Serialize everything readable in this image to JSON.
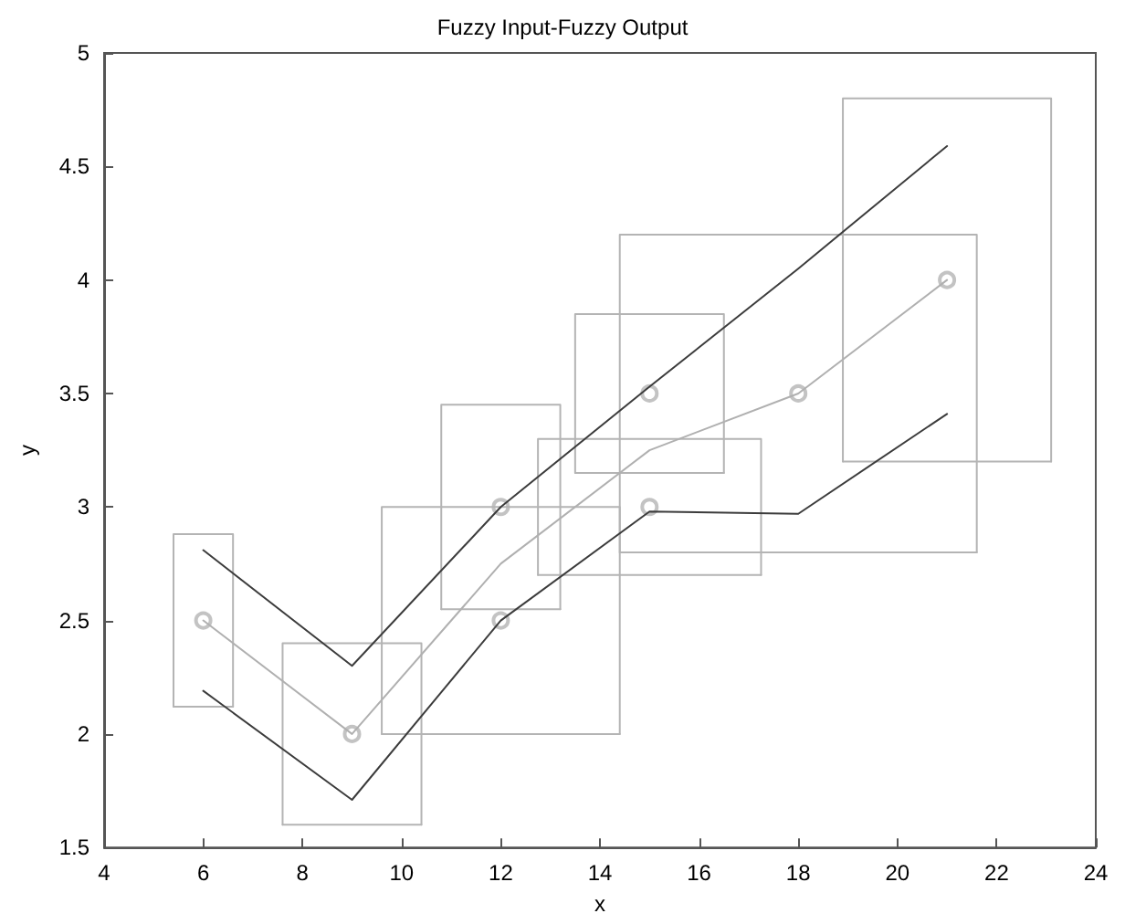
{
  "chart_data": {
    "type": "line",
    "title": "Fuzzy Input-Fuzzy Output",
    "xlabel": "x",
    "ylabel": "y",
    "xlim": [
      4,
      24
    ],
    "xticks": [
      4,
      6,
      8,
      10,
      12,
      14,
      16,
      18,
      20,
      22,
      24
    ],
    "ylim": [
      1.5,
      5
    ],
    "yticks": [
      1.5,
      2,
      2.5,
      3,
      3.5,
      4,
      4.5,
      5
    ],
    "grid": false,
    "marker": "none",
    "line_style": "solid",
    "series": [
      {
        "color": "#b4b4b4",
        "x": [
          5.4,
          5.4,
          6.6,
          6.6
        ],
        "values": [
          2.12,
          2.88,
          2.88,
          2.12
        ]
      },
      {
        "color": "#b4b4b4",
        "x": [
          5.4,
          6.6
        ],
        "values": [
          2.12,
          2.12
        ]
      },
      {
        "color": "#b4b4b4",
        "x": [
          7.6,
          7.6,
          10.4,
          10.4
        ],
        "values": [
          1.6,
          2.4,
          2.4,
          1.6
        ]
      },
      {
        "color": "#b4b4b4",
        "x": [
          7.6,
          10.4
        ],
        "values": [
          1.6,
          1.6
        ]
      },
      {
        "color": "#b4b4b4",
        "x": [
          9.6,
          9.6,
          14.4,
          14.4
        ],
        "values": [
          2.0,
          3.0,
          3.0,
          2.0
        ]
      },
      {
        "color": "#b4b4b4",
        "x": [
          9.6,
          14.4
        ],
        "values": [
          2.0,
          2.0
        ]
      },
      {
        "color": "#b4b4b4",
        "x": [
          10.8,
          10.8,
          13.2,
          13.2
        ],
        "values": [
          2.55,
          3.45,
          3.45,
          2.55
        ]
      },
      {
        "color": "#b4b4b4",
        "x": [
          10.8,
          13.2
        ],
        "values": [
          2.55,
          2.55
        ]
      },
      {
        "color": "#b4b4b4",
        "x": [
          12.75,
          12.75,
          17.25,
          17.25
        ],
        "values": [
          2.7,
          3.3,
          3.3,
          2.7
        ]
      },
      {
        "color": "#b4b4b4",
        "x": [
          12.75,
          17.25
        ],
        "values": [
          2.7,
          2.7
        ]
      },
      {
        "color": "#b4b4b4",
        "x": [
          13.5,
          13.5,
          16.5,
          16.5
        ],
        "values": [
          3.15,
          3.85,
          3.85,
          3.15
        ]
      },
      {
        "color": "#b4b4b4",
        "x": [
          13.5,
          16.5
        ],
        "values": [
          3.15,
          3.15
        ]
      },
      {
        "color": "#b4b4b4",
        "x": [
          14.4,
          14.4,
          21.6,
          21.6
        ],
        "values": [
          2.8,
          4.2,
          4.2,
          2.8
        ]
      },
      {
        "color": "#b4b4b4",
        "x": [
          14.4,
          21.6
        ],
        "values": [
          2.8,
          2.8
        ]
      },
      {
        "color": "#b4b4b4",
        "x": [
          18.9,
          18.9,
          23.1,
          23.1
        ],
        "values": [
          3.2,
          4.8,
          4.8,
          3.2
        ]
      },
      {
        "color": "#b4b4b4",
        "x": [
          18.9,
          23.1
        ],
        "values": [
          3.2,
          3.2
        ]
      },
      {
        "color": "#3c3c3c",
        "x": [
          6,
          9,
          12,
          15,
          18,
          21
        ],
        "values": [
          2.81,
          2.3,
          3.0,
          3.53,
          4.05,
          4.59
        ]
      },
      {
        "color": "#b0b0b0",
        "x": [
          6,
          9,
          12,
          15,
          18,
          21
        ],
        "values": [
          2.5,
          2.0,
          2.75,
          3.25,
          3.5,
          4.0
        ]
      },
      {
        "color": "#3c3c3c",
        "x": [
          6,
          9,
          12,
          15,
          18,
          21
        ],
        "values": [
          2.19,
          1.71,
          2.5,
          2.98,
          2.97,
          3.41
        ]
      },
      {
        "type": "scatter",
        "marker": "circle",
        "color": "#b4b4b4",
        "x": [
          6,
          9,
          12,
          12,
          15,
          15,
          18,
          21
        ],
        "values": [
          2.5,
          2.0,
          3.0,
          2.5,
          3.5,
          3.0,
          3.5,
          4.0
        ]
      }
    ]
  }
}
